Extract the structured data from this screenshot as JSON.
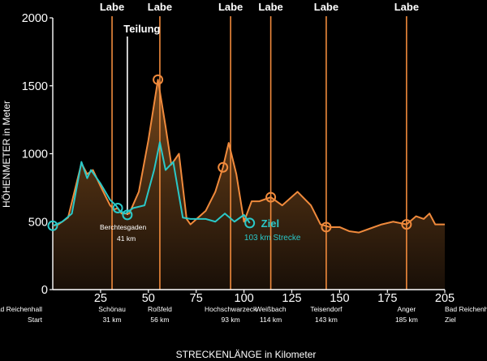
{
  "chart_data": {
    "type": "area",
    "xlim": [
      0,
      205
    ],
    "ylim": [
      0,
      2000
    ],
    "xticks": [
      "25",
      "50",
      "75",
      "100",
      "125",
      "150",
      "175",
      "205"
    ],
    "yticks": [
      "0",
      "500",
      "1000",
      "1500",
      "2000"
    ],
    "xtick_values": [
      25,
      50,
      75,
      100,
      125,
      150,
      175,
      205
    ],
    "ytick_values": [
      0,
      500,
      1000,
      1500,
      2000
    ],
    "xlabel": "STRECKENLÄNGE in Kilometer",
    "ylabel": "HÖHENMETER in Meter",
    "series": [
      {
        "color": "#f08a3c",
        "x": [
          0,
          3,
          8,
          15,
          18,
          21,
          25,
          30,
          32,
          34,
          36,
          40,
          45,
          50,
          55,
          59,
          62,
          66,
          70,
          72,
          80,
          85,
          89,
          92,
          96,
          100,
          104,
          108,
          114,
          120,
          128,
          135,
          140,
          145,
          150,
          155,
          160,
          166,
          172,
          178,
          185,
          190,
          194,
          197,
          200,
          205
        ],
        "y": [
          470,
          480,
          530,
          930,
          850,
          880,
          760,
          620,
          590,
          600,
          560,
          560,
          720,
          1100,
          1545,
          1200,
          920,
          1000,
          520,
          480,
          580,
          720,
          900,
          1080,
          850,
          500,
          650,
          650,
          680,
          620,
          720,
          620,
          480,
          460,
          460,
          430,
          420,
          450,
          480,
          500,
          480,
          540,
          520,
          560,
          480,
          480
        ]
      },
      {
        "name": "103 km Strecke",
        "color": "#2ac8c8",
        "x": [
          0,
          5,
          10,
          15,
          18,
          20,
          25,
          30,
          33,
          35,
          38,
          42,
          48,
          53,
          56,
          59,
          63,
          68,
          72,
          80,
          85,
          90,
          95,
          100,
          103
        ],
        "y": [
          470,
          500,
          560,
          940,
          820,
          880,
          780,
          660,
          620,
          580,
          560,
          600,
          620,
          880,
          1085,
          880,
          940,
          530,
          520,
          520,
          500,
          560,
          500,
          550,
          490
        ]
      }
    ],
    "markers": [
      {
        "x": 0,
        "y": 470,
        "series": 1
      },
      {
        "x": 34,
        "y": 600,
        "series": 1
      },
      {
        "x": 39,
        "y": 550,
        "series": 1
      },
      {
        "x": 55,
        "y": 1545,
        "series": 0
      },
      {
        "x": 89,
        "y": 900,
        "series": 0
      },
      {
        "x": 103,
        "y": 490,
        "series": 1
      },
      {
        "x": 114,
        "y": 680,
        "series": 0
      },
      {
        "x": 143,
        "y": 460,
        "series": 0
      },
      {
        "x": 185,
        "y": 480,
        "series": 0
      }
    ],
    "labe_lines": [
      {
        "x": 31,
        "label": "Labe",
        "top": 1985
      },
      {
        "x": 56,
        "label": "Labe",
        "top": 1985
      },
      {
        "x": 93,
        "label": "Labe",
        "top": 1985
      },
      {
        "x": 114,
        "label": "Labe",
        "top": 1985
      },
      {
        "x": 143,
        "label": "Labe",
        "top": 1985
      },
      {
        "x": 185,
        "label": "Labe",
        "top": 1985
      }
    ],
    "teilung": {
      "x": 39,
      "label": "Teilung"
    },
    "annotations": {
      "berchtesgaden": [
        "Berchtesgaden",
        "41 km"
      ],
      "ziel": "Ziel",
      "strecke": "103 km Strecke"
    },
    "places": [
      {
        "x": 0,
        "lines": [
          "Bad Reichenhall",
          "Start"
        ]
      },
      {
        "x": 31,
        "lines": [
          "Schönau",
          "31 km"
        ]
      },
      {
        "x": 56,
        "lines": [
          "Roßfeld",
          "56 km"
        ]
      },
      {
        "x": 93,
        "lines": [
          "Hochschwarzeck",
          "93 km"
        ]
      },
      {
        "x": 114,
        "lines": [
          "Weißbach",
          "114 km"
        ]
      },
      {
        "x": 143,
        "lines": [
          "Teisendorf",
          "143 km"
        ]
      },
      {
        "x": 185,
        "lines": [
          "Anger",
          "185 km"
        ]
      },
      {
        "x": 205,
        "lines": [
          "Bad Reichenhall",
          "Ziel"
        ]
      }
    ]
  }
}
